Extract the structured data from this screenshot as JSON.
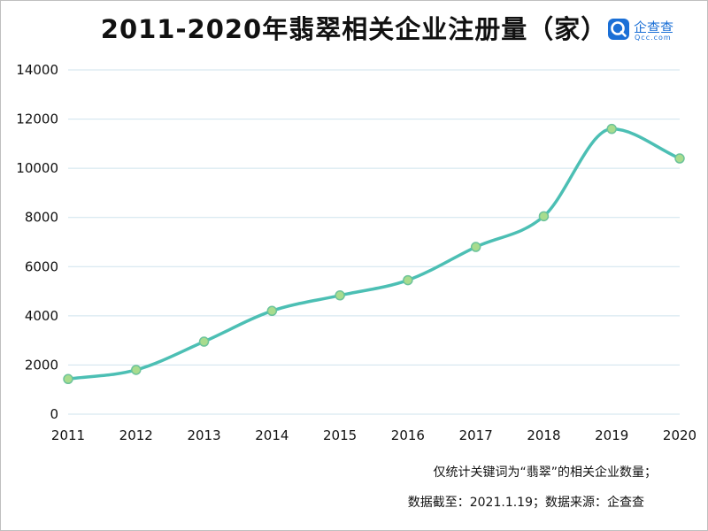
{
  "chart_data": {
    "type": "line",
    "title": "2011-2020年翡翠相关企业注册量（家）",
    "xlabel": "",
    "ylabel": "",
    "categories": [
      "2011",
      "2012",
      "2013",
      "2014",
      "2015",
      "2016",
      "2017",
      "2018",
      "2019",
      "2020"
    ],
    "values": [
      1430,
      1800,
      2950,
      4200,
      4830,
      5450,
      6800,
      8050,
      11600,
      10400
    ],
    "ylim": [
      0,
      14000
    ],
    "yticks": [
      "0",
      "2000",
      "4000",
      "6000",
      "8000",
      "10000",
      "12000",
      "14000"
    ],
    "grid": true,
    "smooth": true,
    "colors": {
      "line": "#4cbfb4",
      "marker_fill": "#a8dc8e",
      "marker_stroke": "#6cc39a",
      "grid": "#cfe3ee",
      "axis": "#cfe3ee"
    }
  },
  "logo": {
    "name": "企查查",
    "sub": "Qcc.com"
  },
  "footnotes": {
    "line1": "仅统计关键词为“翡翠”的相关企业数量；",
    "line2": "数据截至：2021.1.19；数据来源：企查查"
  }
}
